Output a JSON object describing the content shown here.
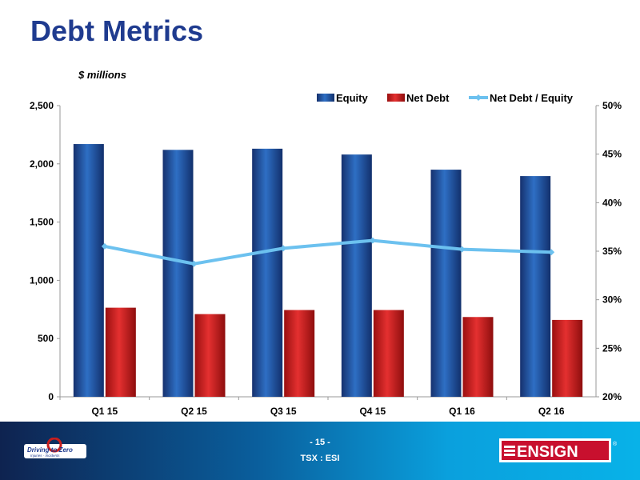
{
  "header": {
    "title": "Debt Metrics",
    "units": "$ millions"
  },
  "footer": {
    "page_number": "- 15 -",
    "ticker": "TSX : ESI",
    "left_logo_text": "Driving to Zero",
    "left_logo_subtext": "Injuries - Incidents",
    "right_logo_text": "ENSIGN",
    "right_logo_mark": "®"
  },
  "chart_data": {
    "type": "bar",
    "categories": [
      "Q1 15",
      "Q2 15",
      "Q3 15",
      "Q4 15",
      "Q1 16",
      "Q2 16"
    ],
    "series": [
      {
        "name": "Equity",
        "type": "bar",
        "axis": "left",
        "color": "#1f4f9e",
        "values": [
          2170,
          2120,
          2130,
          2080,
          1950,
          1895
        ]
      },
      {
        "name": "Net Debt",
        "type": "bar",
        "axis": "left",
        "color": "#d12020",
        "values": [
          765,
          710,
          745,
          745,
          685,
          660
        ]
      },
      {
        "name": "Net Debt / Equity",
        "type": "line",
        "axis": "right",
        "color": "#6cc1ef",
        "values": [
          35.5,
          33.7,
          35.3,
          36.1,
          35.2,
          34.9
        ]
      }
    ],
    "y_left": {
      "min": 0,
      "max": 2500,
      "ticks": [
        0,
        500,
        1000,
        1500,
        2000,
        2500
      ],
      "tick_labels": [
        "0",
        "500",
        "1,000",
        "1,500",
        "2,000",
        "2,500"
      ]
    },
    "y_right": {
      "min": 20,
      "max": 50,
      "ticks": [
        20,
        25,
        30,
        35,
        40,
        45,
        50
      ],
      "tick_labels": [
        "20%",
        "25%",
        "30%",
        "35%",
        "40%",
        "45%",
        "50%"
      ]
    },
    "legend_position": "top-right",
    "grid": false
  }
}
